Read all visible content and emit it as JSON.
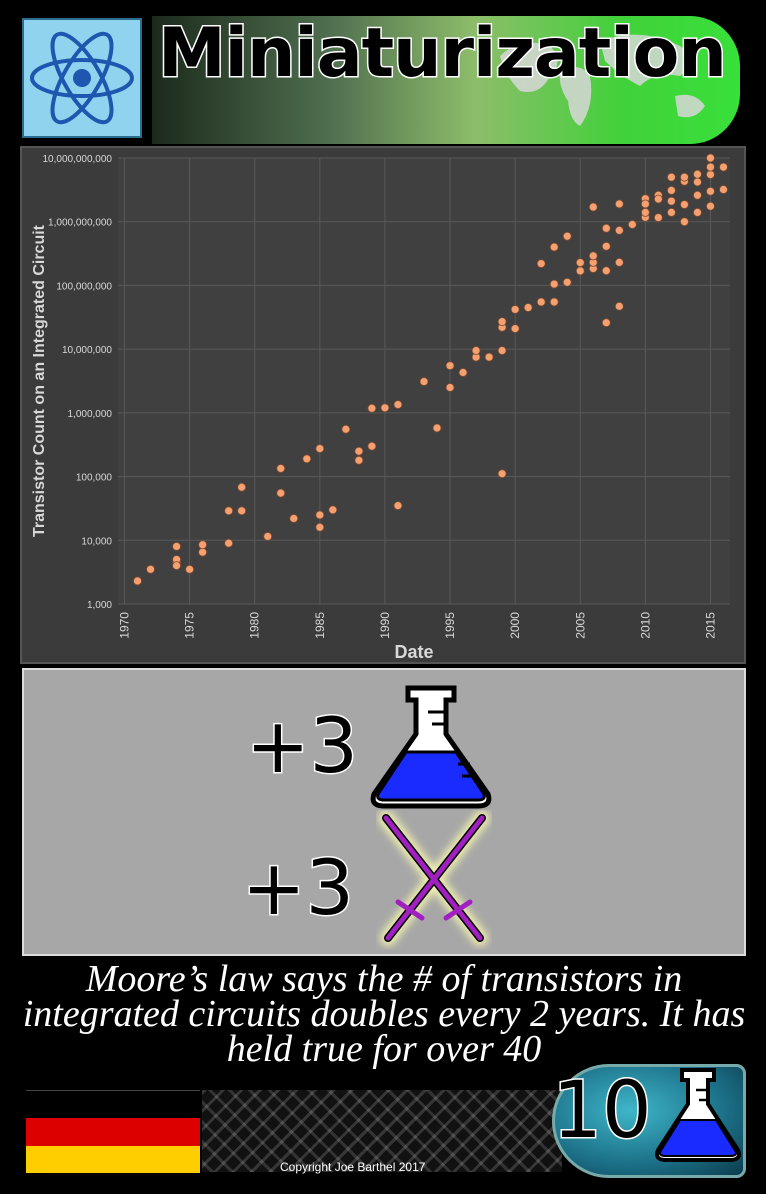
{
  "card": {
    "title": "Miniaturization",
    "flavor_text": "Moore’s law says the # of transistors in integrated circuits doubles every 2 years. It has held true for over 40",
    "copyright": "Copyright Joe Barthel 2017",
    "cost": "10",
    "cost_icon": "flask-icon",
    "era_icon": "atom-icon",
    "nation_flag": "germany-flag",
    "flag_colors": [
      "#000000",
      "#dd0000",
      "#ffce00"
    ],
    "effects": [
      {
        "amount": "+3",
        "icon": "flask-icon",
        "color": "#1a2bff"
      },
      {
        "amount": "+3",
        "icon": "crossed-swords-icon",
        "color": "#a020c0"
      }
    ]
  },
  "chart_data": {
    "type": "scatter",
    "title": "",
    "xlabel": "Date",
    "ylabel": "Transistor Count on an Integrated Circuit",
    "xlim": [
      1969.5,
      2016.5
    ],
    "ylim": [
      1000,
      10000000000
    ],
    "y_scale": "log",
    "x_ticks": [
      1970,
      1975,
      1980,
      1985,
      1990,
      1995,
      2000,
      2005,
      2010,
      2015
    ],
    "y_ticks": [
      "1,000",
      "10,000",
      "100,000",
      "1,000,000",
      "10,000,000",
      "100,000,000",
      "1,000,000,000",
      "10,000,000,000"
    ],
    "grid": true,
    "marker_color": "#f4a070",
    "points": [
      [
        1971,
        2300
      ],
      [
        1972,
        3500
      ],
      [
        1974,
        4500
      ],
      [
        1974,
        5000
      ],
      [
        1974,
        8000
      ],
      [
        1974,
        4000
      ],
      [
        1975,
        3500
      ],
      [
        1976,
        6500
      ],
      [
        1976,
        8500
      ],
      [
        1978,
        9000
      ],
      [
        1978,
        29000
      ],
      [
        1979,
        29000
      ],
      [
        1979,
        68000
      ],
      [
        1981,
        11500
      ],
      [
        1982,
        55000
      ],
      [
        1982,
        134000
      ],
      [
        1983,
        22000
      ],
      [
        1984,
        190000
      ],
      [
        1985,
        275000
      ],
      [
        1985,
        16000
      ],
      [
        1985,
        25000
      ],
      [
        1986,
        30000
      ],
      [
        1987,
        553000
      ],
      [
        1988,
        180000
      ],
      [
        1988,
        250000
      ],
      [
        1989,
        1180000
      ],
      [
        1989,
        300000
      ],
      [
        1990,
        1200000
      ],
      [
        1991,
        1350000
      ],
      [
        1991,
        35000
      ],
      [
        1993,
        3100000
      ],
      [
        1994,
        578977
      ],
      [
        1995,
        2500000
      ],
      [
        1995,
        5500000
      ],
      [
        1996,
        4300000
      ],
      [
        1997,
        7500000
      ],
      [
        1997,
        9500000
      ],
      [
        1998,
        7500000
      ],
      [
        1999,
        9500000
      ],
      [
        1999,
        22000000
      ],
      [
        1999,
        27000000
      ],
      [
        1999,
        111000
      ],
      [
        2000,
        21000000
      ],
      [
        2000,
        42000000
      ],
      [
        2001,
        45000000
      ],
      [
        2002,
        55000000
      ],
      [
        2002,
        220000000
      ],
      [
        2003,
        400000000
      ],
      [
        2003,
        105000000
      ],
      [
        2003,
        55000000
      ],
      [
        2004,
        592000000
      ],
      [
        2004,
        112000000
      ],
      [
        2005,
        169000000
      ],
      [
        2005,
        228000000
      ],
      [
        2006,
        184000000
      ],
      [
        2006,
        230000000
      ],
      [
        2006,
        291000000
      ],
      [
        2006,
        1700000000
      ],
      [
        2007,
        411000000
      ],
      [
        2007,
        170000000
      ],
      [
        2007,
        789000000
      ],
      [
        2007,
        26000000
      ],
      [
        2008,
        731000000
      ],
      [
        2008,
        47000000
      ],
      [
        2008,
        1900000000
      ],
      [
        2008,
        230000000
      ],
      [
        2009,
        904000000
      ],
      [
        2010,
        2300000000
      ],
      [
        2010,
        1170000000
      ],
      [
        2010,
        1400000000
      ],
      [
        2010,
        1900000000
      ],
      [
        2011,
        1160000000
      ],
      [
        2011,
        2600000000
      ],
      [
        2011,
        2270000000
      ],
      [
        2012,
        1400000000
      ],
      [
        2012,
        2100000000
      ],
      [
        2012,
        3100000000
      ],
      [
        2012,
        5000000000
      ],
      [
        2013,
        1000000000
      ],
      [
        2013,
        1860000000
      ],
      [
        2013,
        4310000000
      ],
      [
        2013,
        5000000000
      ],
      [
        2014,
        1400000000
      ],
      [
        2014,
        2600000000
      ],
      [
        2014,
        4200000000
      ],
      [
        2014,
        5560000000
      ],
      [
        2015,
        1750000000
      ],
      [
        2015,
        3000000000
      ],
      [
        2015,
        5500000000
      ],
      [
        2015,
        7200000000
      ],
      [
        2015,
        10000000000
      ],
      [
        2016,
        3200000000
      ],
      [
        2016,
        7200000000
      ]
    ]
  }
}
